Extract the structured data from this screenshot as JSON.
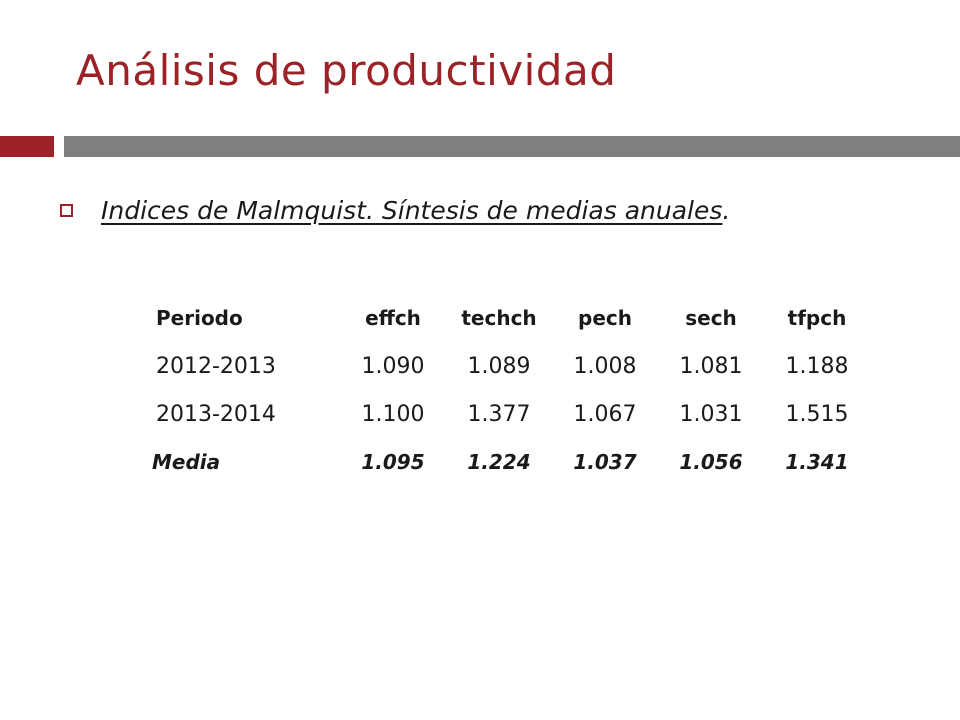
{
  "slide": {
    "title": "Análisis de productividad",
    "bullet": {
      "text_underlined": "Indices de Malmquist. Síntesis de medias anuales",
      "text_tail": "."
    },
    "table": {
      "headers": [
        "Periodo",
        "effch",
        "techch",
        "pech",
        "sech",
        "tfpch"
      ],
      "rows": [
        [
          "2012-2013",
          "1.090",
          "1.089",
          "1.008",
          "1.081",
          "1.188"
        ],
        [
          "2013-2014",
          "1.100",
          "1.377",
          "1.067",
          "1.031",
          "1.515"
        ]
      ],
      "mean_row": [
        "Media",
        "1.095",
        "1.224",
        "1.037",
        "1.056",
        "1.341"
      ]
    },
    "colors": {
      "accent": "#9b2226",
      "bar_gray": "#7f7f7f"
    }
  }
}
